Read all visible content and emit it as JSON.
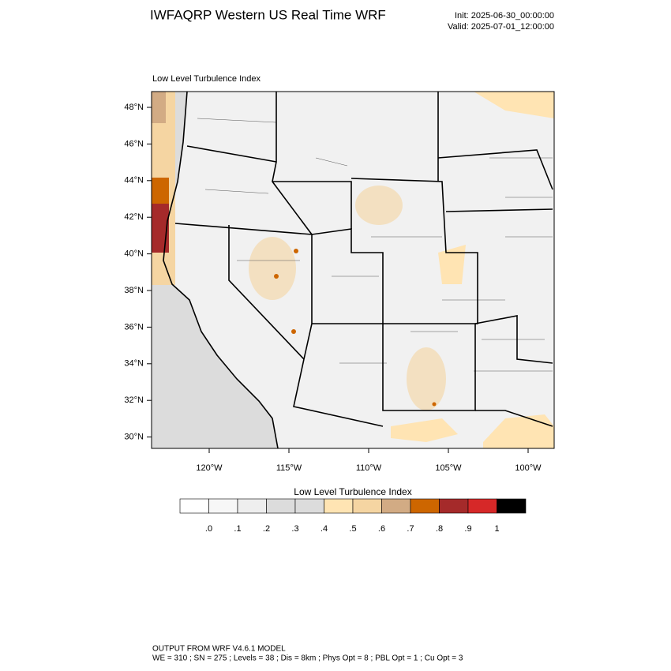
{
  "header": {
    "title": "IWFAQRP Western US Real Time WRF",
    "init": "Init: 2025-06-30_00:00:00",
    "valid": "Valid: 2025-07-01_12:00:00"
  },
  "map": {
    "title": "Low Level Turbulence Index",
    "lat_labels": [
      "48°N",
      "46°N",
      "44°N",
      "42°N",
      "40°N",
      "38°N",
      "36°N",
      "34°N",
      "32°N",
      "30°N"
    ],
    "lon_labels": [
      "120°W",
      "115°W",
      "110°W",
      "105°W",
      "100°W"
    ]
  },
  "colorbar": {
    "title": "Low Level Turbulence Index",
    "labels": [
      ".0",
      ".1",
      ".2",
      ".3",
      ".4",
      ".5",
      ".6",
      ".7",
      ".8",
      ".9",
      "1"
    ],
    "colors": [
      "#ffffff",
      "#f7f7f7",
      "#eeeeee",
      "#dcdcdc",
      "#dcdcdc",
      "#ffe4b3",
      "#f5d5a2",
      "#d2ab84",
      "#cd6600",
      "#a52a2a",
      "#d62828",
      "#000000"
    ]
  },
  "footer": {
    "line1": "OUTPUT FROM WRF V4.6.1 MODEL",
    "line2": "WE = 310 ; SN = 275 ; Levels = 38 ; Dis = 8km ; Phys Opt = 8 ; PBL Opt = 1 ; Cu Opt = 3"
  }
}
